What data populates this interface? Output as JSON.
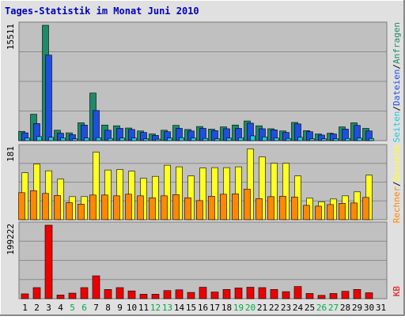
{
  "title": "Tages-Statistik im Monat Juni 2010",
  "colors": {
    "background": "#E0E0E0",
    "plot_bg": "#C0C0C0",
    "frame": "#888888",
    "title": "#0000BB",
    "hits": "#1E8A6A",
    "files": "#1E4FE0",
    "pages": "#1EC8D8",
    "visits": "#FFFF22",
    "sites": "#FF8800",
    "kbytes": "#EE0000",
    "weekend_label": "#00AA44"
  },
  "right_labels": {
    "hits": "Anfragen",
    "files": "Dateien",
    "pages": "Seiten",
    "visits": "Besuche",
    "sites": "Rechner",
    "kbytes": "KB",
    "sep": "/"
  },
  "chart_data": [
    {
      "type": "bar",
      "name": "top-panel",
      "categories": [
        "1",
        "2",
        "3",
        "4",
        "5",
        "6",
        "7",
        "8",
        "9",
        "10",
        "11",
        "12",
        "13",
        "14",
        "15",
        "16",
        "17",
        "18",
        "19",
        "20",
        "21",
        "22",
        "23",
        "24",
        "25",
        "26",
        "27",
        "28",
        "29",
        "30",
        "31"
      ],
      "weekend_days": [
        "5",
        "6",
        "12",
        "13",
        "19",
        "20",
        "26",
        "27"
      ],
      "y_max_label": "15511",
      "ylim": [
        0,
        15511
      ],
      "series": [
        {
          "name": "Anfragen",
          "values": [
            1250,
            3550,
            15511,
            1400,
            1050,
            2400,
            6400,
            2100,
            2000,
            1700,
            1300,
            900,
            1400,
            2050,
            1500,
            1900,
            1550,
            1850,
            2100,
            2650,
            2000,
            1600,
            1300,
            2450,
            1350,
            900,
            1000,
            1850,
            2400,
            1650,
            0
          ]
        },
        {
          "name": "Dateien",
          "values": [
            1050,
            2300,
            11500,
            1000,
            800,
            2100,
            4050,
            1400,
            1650,
            1500,
            1100,
            700,
            1200,
            1650,
            1300,
            1650,
            1350,
            1600,
            1650,
            2350,
            1600,
            1450,
            1100,
            2250,
            1200,
            750,
            900,
            1550,
            2050,
            1300,
            0
          ]
        },
        {
          "name": "Seiten",
          "values": [
            350,
            550,
            450,
            350,
            250,
            350,
            400,
            300,
            350,
            350,
            250,
            200,
            350,
            400,
            350,
            300,
            250,
            350,
            400,
            650,
            500,
            350,
            300,
            450,
            250,
            250,
            250,
            300,
            350,
            300,
            0
          ]
        }
      ]
    },
    {
      "type": "bar",
      "name": "middle-panel",
      "categories": [
        "1",
        "2",
        "3",
        "4",
        "5",
        "6",
        "7",
        "8",
        "9",
        "10",
        "11",
        "12",
        "13",
        "14",
        "15",
        "16",
        "17",
        "18",
        "19",
        "20",
        "21",
        "22",
        "23",
        "24",
        "25",
        "26",
        "27",
        "28",
        "29",
        "30",
        "31"
      ],
      "y_max_label": "181",
      "ylim": [
        0,
        181
      ],
      "series": [
        {
          "name": "Besuche",
          "values": [
            118,
            140,
            123,
            102,
            58,
            58,
            170,
            125,
            126,
            122,
            104,
            109,
            137,
            133,
            110,
            130,
            131,
            131,
            133,
            178,
            158,
            142,
            142,
            110,
            54,
            45,
            52,
            60,
            70,
            112,
            0
          ]
        },
        {
          "name": "Rechner",
          "values": [
            68,
            73,
            66,
            61,
            43,
            39,
            62,
            62,
            60,
            64,
            60,
            55,
            60,
            63,
            55,
            48,
            59,
            64,
            65,
            77,
            53,
            58,
            59,
            57,
            36,
            34,
            38,
            41,
            42,
            56,
            0
          ]
        }
      ]
    },
    {
      "type": "bar",
      "name": "bottom-panel",
      "categories": [
        "1",
        "2",
        "3",
        "4",
        "5",
        "6",
        "7",
        "8",
        "9",
        "10",
        "11",
        "12",
        "13",
        "14",
        "15",
        "16",
        "17",
        "18",
        "19",
        "20",
        "21",
        "22",
        "23",
        "24",
        "25",
        "26",
        "27",
        "28",
        "29",
        "30",
        "31"
      ],
      "y_max_label": "199222",
      "ylim": [
        0,
        199222
      ],
      "series": [
        {
          "name": "KB",
          "values": [
            13000,
            30000,
            199222,
            10000,
            15000,
            30000,
            62000,
            25000,
            30000,
            21000,
            12000,
            12000,
            22000,
            24000,
            17000,
            31000,
            18000,
            25000,
            29000,
            31000,
            30000,
            25000,
            19000,
            33000,
            14000,
            9000,
            14000,
            20000,
            25000,
            16000,
            0
          ]
        }
      ]
    }
  ]
}
